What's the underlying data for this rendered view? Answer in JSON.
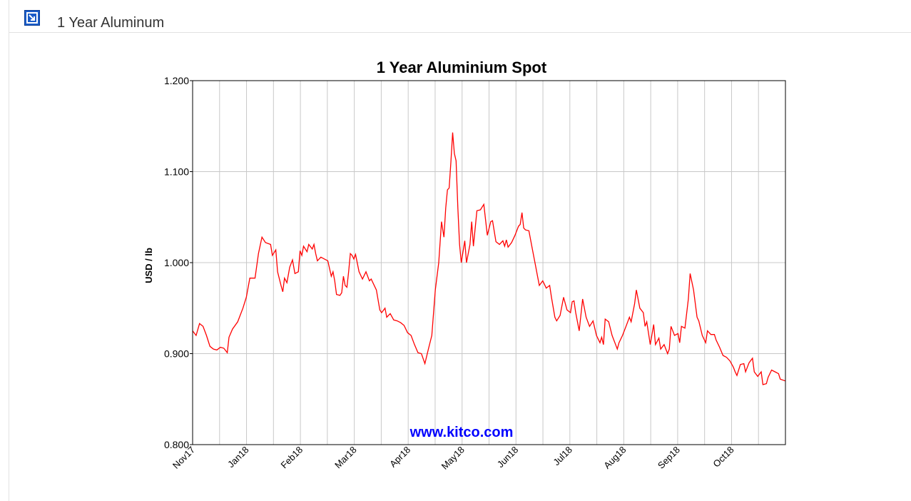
{
  "header": {
    "title": "1 Year Aluminum",
    "button_icon": "expand-arrow-icon"
  },
  "colors": {
    "line": "#ff0000",
    "watermark": "#0000ff",
    "grid": "#c8c8c8",
    "accent": "#1a5cc8"
  },
  "chart_data": {
    "type": "line",
    "title": "1 Year Aluminium Spot",
    "ylabel": "USD / lb",
    "xlabel": "",
    "watermark": "www.kitco.com",
    "ylim": [
      0.8,
      1.2
    ],
    "yticks": [
      "0.800",
      "0.900",
      "1.000",
      "1.100",
      "1.200"
    ],
    "xticks": [
      "Nov17",
      "Jan18",
      "Feb18",
      "Mar18",
      "Apr18",
      "May18",
      "Jun18",
      "Jul18",
      "Aug18",
      "Sep18",
      "Oct18"
    ],
    "grid": true,
    "legend": "none",
    "series": [
      {
        "values": [
          [
            0.0,
            0.925
          ],
          [
            0.1,
            0.92
          ],
          [
            0.2,
            0.933
          ],
          [
            0.3,
            0.93
          ],
          [
            0.4,
            0.92
          ],
          [
            0.5,
            0.908
          ],
          [
            0.6,
            0.905
          ],
          [
            0.7,
            0.904
          ],
          [
            0.8,
            0.907
          ],
          [
            0.9,
            0.906
          ],
          [
            1.0,
            0.901
          ],
          [
            1.05,
            0.918
          ],
          [
            1.15,
            0.927
          ],
          [
            1.3,
            0.935
          ],
          [
            1.45,
            0.95
          ],
          [
            1.55,
            0.962
          ],
          [
            1.65,
            0.983
          ],
          [
            1.8,
            0.983
          ],
          [
            1.9,
            1.01
          ],
          [
            2.0,
            1.028
          ],
          [
            2.1,
            1.022
          ],
          [
            2.25,
            1.02
          ],
          [
            2.3,
            1.008
          ],
          [
            2.4,
            1.014
          ],
          [
            2.45,
            0.99
          ],
          [
            2.55,
            0.975
          ],
          [
            2.6,
            0.968
          ],
          [
            2.65,
            0.983
          ],
          [
            2.72,
            0.978
          ],
          [
            2.8,
            0.995
          ],
          [
            2.88,
            1.003
          ],
          [
            2.95,
            0.988
          ],
          [
            3.05,
            0.99
          ],
          [
            3.1,
            1.013
          ],
          [
            3.15,
            1.008
          ],
          [
            3.2,
            1.018
          ],
          [
            3.3,
            1.012
          ],
          [
            3.35,
            1.02
          ],
          [
            3.45,
            1.015
          ],
          [
            3.5,
            1.02
          ],
          [
            3.55,
            1.01
          ],
          [
            3.6,
            1.002
          ],
          [
            3.7,
            1.006
          ],
          [
            3.8,
            1.004
          ],
          [
            3.9,
            1.002
          ],
          [
            4.0,
            0.985
          ],
          [
            4.05,
            0.99
          ],
          [
            4.1,
            0.98
          ],
          [
            4.15,
            0.965
          ],
          [
            4.25,
            0.964
          ],
          [
            4.3,
            0.967
          ],
          [
            4.35,
            0.985
          ],
          [
            4.4,
            0.975
          ],
          [
            4.45,
            0.973
          ],
          [
            4.5,
            0.99
          ],
          [
            4.55,
            1.01
          ],
          [
            4.6,
            1.008
          ],
          [
            4.65,
            1.004
          ],
          [
            4.7,
            1.009
          ],
          [
            4.8,
            0.99
          ],
          [
            4.9,
            0.982
          ],
          [
            5.0,
            0.99
          ],
          [
            5.1,
            0.98
          ],
          [
            5.15,
            0.982
          ],
          [
            5.3,
            0.97
          ],
          [
            5.4,
            0.948
          ],
          [
            5.45,
            0.945
          ],
          [
            5.55,
            0.95
          ],
          [
            5.6,
            0.94
          ],
          [
            5.7,
            0.944
          ],
          [
            5.8,
            0.937
          ],
          [
            5.9,
            0.936
          ],
          [
            6.0,
            0.934
          ],
          [
            6.1,
            0.931
          ],
          [
            6.2,
            0.923
          ],
          [
            6.3,
            0.92
          ],
          [
            6.4,
            0.91
          ],
          [
            6.5,
            0.901
          ],
          [
            6.6,
            0.9
          ],
          [
            6.7,
            0.889
          ],
          [
            6.8,
            0.905
          ],
          [
            6.9,
            0.92
          ],
          [
            7.0,
            0.97
          ],
          [
            7.1,
            1.0
          ],
          [
            7.18,
            1.045
          ],
          [
            7.25,
            1.028
          ],
          [
            7.3,
            1.06
          ],
          [
            7.35,
            1.08
          ],
          [
            7.4,
            1.082
          ],
          [
            7.45,
            1.11
          ],
          [
            7.5,
            1.143
          ],
          [
            7.55,
            1.12
          ],
          [
            7.6,
            1.112
          ],
          [
            7.65,
            1.06
          ],
          [
            7.7,
            1.02
          ],
          [
            7.75,
            1.0
          ],
          [
            7.85,
            1.024
          ],
          [
            7.9,
            1.0
          ],
          [
            8.0,
            1.02
          ],
          [
            8.05,
            1.045
          ],
          [
            8.1,
            1.018
          ],
          [
            8.2,
            1.057
          ],
          [
            8.3,
            1.058
          ],
          [
            8.4,
            1.064
          ],
          [
            8.5,
            1.03
          ],
          [
            8.6,
            1.045
          ],
          [
            8.65,
            1.046
          ],
          [
            8.75,
            1.023
          ],
          [
            8.85,
            1.02
          ],
          [
            8.95,
            1.024
          ],
          [
            9.0,
            1.018
          ],
          [
            9.05,
            1.025
          ],
          [
            9.1,
            1.017
          ],
          [
            9.2,
            1.022
          ],
          [
            9.3,
            1.03
          ],
          [
            9.4,
            1.04
          ],
          [
            9.45,
            1.042
          ],
          [
            9.5,
            1.055
          ],
          [
            9.55,
            1.038
          ],
          [
            9.6,
            1.036
          ],
          [
            9.7,
            1.035
          ],
          [
            9.8,
            1.015
          ],
          [
            9.9,
            0.995
          ],
          [
            9.95,
            0.985
          ],
          [
            10.0,
            0.975
          ],
          [
            10.1,
            0.98
          ],
          [
            10.2,
            0.972
          ],
          [
            10.3,
            0.975
          ],
          [
            10.35,
            0.962
          ],
          [
            10.45,
            0.94
          ],
          [
            10.5,
            0.936
          ],
          [
            10.6,
            0.942
          ],
          [
            10.7,
            0.962
          ],
          [
            10.8,
            0.948
          ],
          [
            10.9,
            0.945
          ],
          [
            10.95,
            0.957
          ],
          [
            11.0,
            0.958
          ],
          [
            11.05,
            0.945
          ],
          [
            11.15,
            0.925
          ],
          [
            11.25,
            0.96
          ],
          [
            11.35,
            0.94
          ],
          [
            11.45,
            0.93
          ],
          [
            11.55,
            0.936
          ],
          [
            11.65,
            0.92
          ],
          [
            11.75,
            0.912
          ],
          [
            11.8,
            0.918
          ],
          [
            11.85,
            0.91
          ],
          [
            11.9,
            0.938
          ],
          [
            12.0,
            0.935
          ],
          [
            12.1,
            0.92
          ],
          [
            12.2,
            0.91
          ],
          [
            12.25,
            0.905
          ],
          [
            12.3,
            0.912
          ],
          [
            12.4,
            0.92
          ],
          [
            12.5,
            0.93
          ],
          [
            12.6,
            0.94
          ],
          [
            12.65,
            0.935
          ],
          [
            12.75,
            0.955
          ],
          [
            12.8,
            0.97
          ],
          [
            12.9,
            0.95
          ],
          [
            13.0,
            0.945
          ],
          [
            13.05,
            0.93
          ],
          [
            13.1,
            0.935
          ],
          [
            13.2,
            0.91
          ],
          [
            13.3,
            0.932
          ],
          [
            13.35,
            0.91
          ],
          [
            13.45,
            0.917
          ],
          [
            13.5,
            0.905
          ],
          [
            13.6,
            0.91
          ],
          [
            13.7,
            0.9
          ],
          [
            13.75,
            0.905
          ],
          [
            13.8,
            0.93
          ],
          [
            13.9,
            0.92
          ],
          [
            14.0,
            0.922
          ],
          [
            14.05,
            0.912
          ],
          [
            14.1,
            0.93
          ],
          [
            14.2,
            0.928
          ],
          [
            14.3,
            0.96
          ],
          [
            14.35,
            0.988
          ],
          [
            14.45,
            0.97
          ],
          [
            14.55,
            0.94
          ],
          [
            14.6,
            0.936
          ],
          [
            14.7,
            0.92
          ],
          [
            14.8,
            0.912
          ],
          [
            14.85,
            0.925
          ],
          [
            14.95,
            0.921
          ],
          [
            15.05,
            0.921
          ],
          [
            15.1,
            0.915
          ],
          [
            15.2,
            0.907
          ],
          [
            15.3,
            0.898
          ],
          [
            15.4,
            0.896
          ],
          [
            15.5,
            0.892
          ],
          [
            15.6,
            0.885
          ],
          [
            15.65,
            0.88
          ],
          [
            15.7,
            0.876
          ],
          [
            15.8,
            0.888
          ],
          [
            15.9,
            0.889
          ],
          [
            15.95,
            0.88
          ],
          [
            16.05,
            0.89
          ],
          [
            16.15,
            0.895
          ],
          [
            16.2,
            0.88
          ],
          [
            16.3,
            0.875
          ],
          [
            16.4,
            0.88
          ],
          [
            16.45,
            0.866
          ],
          [
            16.55,
            0.867
          ],
          [
            16.6,
            0.874
          ],
          [
            16.7,
            0.882
          ],
          [
            16.8,
            0.88
          ],
          [
            16.9,
            0.878
          ],
          [
            16.95,
            0.872
          ],
          [
            17.1,
            0.87
          ]
        ]
      }
    ]
  }
}
